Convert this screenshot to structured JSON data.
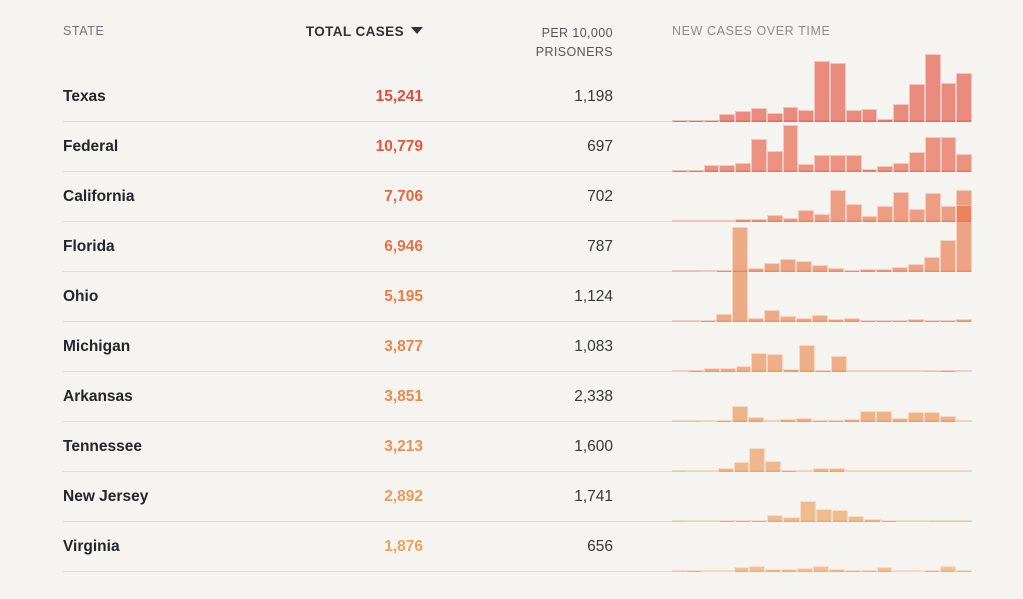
{
  "page": {
    "background_color": "#f5f4f0",
    "divider_color": "#deddd9"
  },
  "header": {
    "state_label": "STATE",
    "total_cases_label": "TOTAL CASES",
    "sort_icon": "triangle-down-icon",
    "sort": {
      "column": "TOTAL CASES",
      "direction": "descending"
    },
    "per_10k_line1": "PER 10,000",
    "per_10k_line2": "PRISONERS",
    "new_cases_label": "NEW CASES OVER TIME"
  },
  "chart_data": {
    "type": "table",
    "columns": [
      "STATE",
      "TOTAL CASES",
      "PER 10,000 PRISONERS",
      "NEW CASES OVER TIME"
    ],
    "sparkline_type": "bar",
    "sparkline_note": "19 bars per row; values are relative bar heights in px, bars may overflow row height (50px)",
    "rows": [
      {
        "state": "Texas",
        "total_cases": "15,241",
        "per_10k": "1,198",
        "color": "#e24a3a",
        "bars": [
          2,
          2,
          2,
          8,
          11,
          14,
          9,
          15,
          12,
          61,
          59,
          12,
          13,
          3,
          18,
          38,
          68,
          39,
          49
        ]
      },
      {
        "state": "Federal",
        "total_cases": "10,779",
        "per_10k": "697",
        "color": "#e5573c",
        "bars": [
          2,
          2,
          7,
          7,
          9,
          33,
          21,
          47,
          8,
          17,
          17,
          17,
          3,
          6,
          9,
          20,
          35,
          35,
          18
        ]
      },
      {
        "state": "California",
        "total_cases": "7,706",
        "per_10k": "702",
        "color": "#e7673f",
        "bars": [
          1,
          1,
          1,
          1,
          3,
          3,
          7,
          4,
          12,
          8,
          32,
          18,
          6,
          16,
          30,
          13,
          29,
          16,
          32
        ]
      },
      {
        "state": "Florida",
        "total_cases": "6,946",
        "per_10k": "787",
        "color": "#e87243",
        "bars": [
          0,
          0,
          1,
          2,
          2,
          4,
          9,
          13,
          11,
          7,
          4,
          2,
          3,
          3,
          5,
          8,
          15,
          32,
          67
        ]
      },
      {
        "state": "Ohio",
        "total_cases": "5,195",
        "per_10k": "1,124",
        "color": "#e97c45",
        "bars": [
          0,
          0,
          2,
          8,
          95,
          4,
          12,
          6,
          4,
          7,
          3,
          4,
          2,
          2,
          2,
          3,
          2,
          2,
          3
        ]
      },
      {
        "state": "Michigan",
        "total_cases": "3,877",
        "per_10k": "1,083",
        "color": "#ea8649",
        "bars": [
          1,
          2,
          4,
          4,
          6,
          19,
          18,
          3,
          27,
          2,
          16,
          1,
          1,
          1,
          1,
          1,
          0,
          2,
          1
        ]
      },
      {
        "state": "Arkansas",
        "total_cases": "3,851",
        "per_10k": "2,338",
        "color": "#ea8a4b",
        "bars": [
          0,
          0,
          1,
          2,
          16,
          5,
          1,
          3,
          4,
          2,
          2,
          3,
          11,
          11,
          4,
          10,
          10,
          6,
          1
        ]
      },
      {
        "state": "Tennessee",
        "total_cases": "3,213",
        "per_10k": "1,600",
        "color": "#eb9250",
        "bars": [
          0,
          1,
          1,
          4,
          10,
          24,
          11,
          2,
          1,
          4,
          4,
          1,
          1,
          1,
          1,
          1,
          1,
          1,
          1
        ]
      },
      {
        "state": "New Jersey",
        "total_cases": "2,892",
        "per_10k": "1,741",
        "color": "#ec9a56",
        "bars": [
          0,
          1,
          1,
          2,
          2,
          2,
          7,
          5,
          21,
          13,
          12,
          6,
          3,
          2,
          1,
          1,
          0,
          0,
          0
        ]
      },
      {
        "state": "Virginia",
        "total_cases": "1,876",
        "per_10k": "656",
        "color": "#eda25c",
        "bars": [
          0,
          2,
          1,
          1,
          5,
          6,
          3,
          3,
          4,
          6,
          3,
          2,
          2,
          5,
          1,
          1,
          2,
          6,
          2
        ]
      }
    ]
  }
}
